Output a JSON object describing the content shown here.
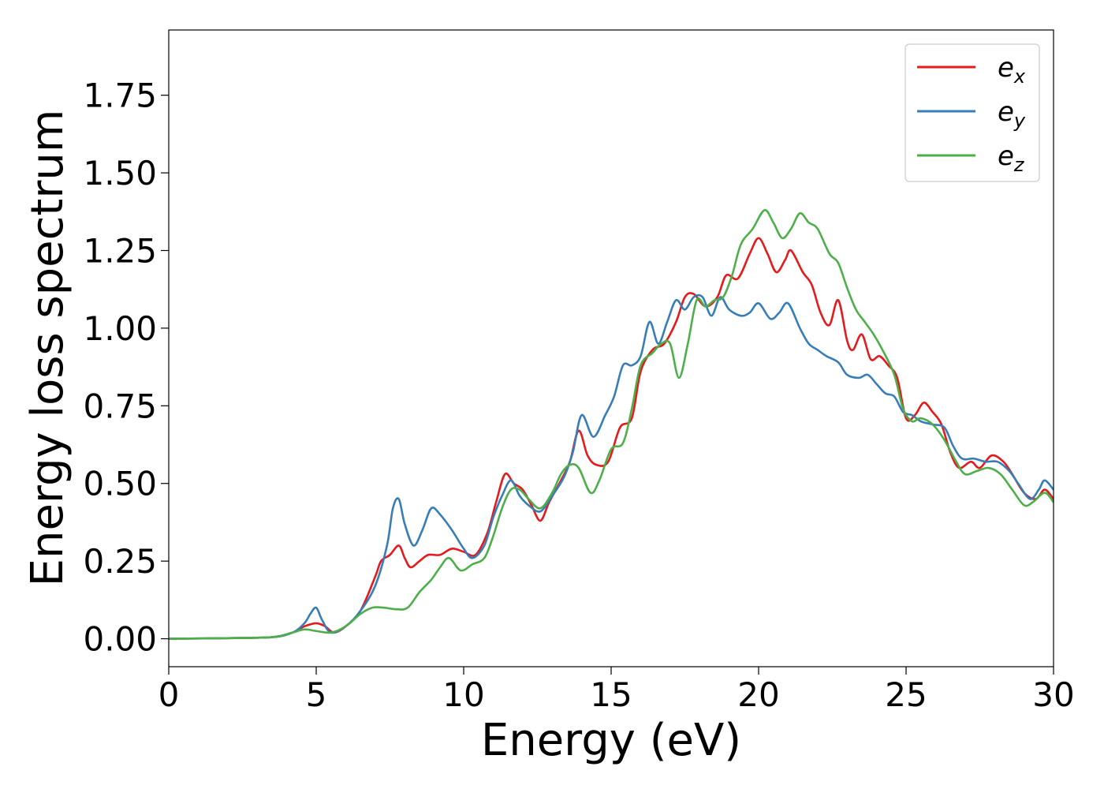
{
  "chart_data": {
    "type": "line",
    "title": "",
    "xlabel": "Energy (eV)",
    "ylabel": "Energy loss spectrum",
    "xlim": [
      0,
      30
    ],
    "ylim": [
      -0.09,
      1.96
    ],
    "xticks": [
      0,
      5,
      10,
      15,
      20,
      25,
      30
    ],
    "xtick_labels": [
      "0",
      "5",
      "10",
      "15",
      "20",
      "25",
      "30"
    ],
    "yticks": [
      0,
      0.25,
      0.5,
      0.75,
      1.0,
      1.25,
      1.5,
      1.75
    ],
    "ytick_labels": [
      "0.00",
      "0.25",
      "0.50",
      "0.75",
      "1.00",
      "1.25",
      "1.50",
      "1.75"
    ],
    "grid": false,
    "legend": {
      "placement": "top-right"
    },
    "series": [
      {
        "name": "e_x",
        "label_main": "e",
        "label_sub": "x",
        "color": "#e41a1c",
        "points": [
          [
            0,
            0
          ],
          [
            2,
            0.002
          ],
          [
            3.5,
            0.005
          ],
          [
            4.2,
            0.02
          ],
          [
            4.6,
            0.04
          ],
          [
            5.0,
            0.05
          ],
          [
            5.3,
            0.04
          ],
          [
            5.6,
            0.02
          ],
          [
            6.0,
            0.04
          ],
          [
            6.5,
            0.09
          ],
          [
            7.0,
            0.2
          ],
          [
            7.2,
            0.25
          ],
          [
            7.5,
            0.27
          ],
          [
            7.8,
            0.3
          ],
          [
            8.0,
            0.26
          ],
          [
            8.2,
            0.23
          ],
          [
            8.5,
            0.25
          ],
          [
            8.8,
            0.27
          ],
          [
            9.2,
            0.27
          ],
          [
            9.6,
            0.29
          ],
          [
            10.0,
            0.28
          ],
          [
            10.4,
            0.27
          ],
          [
            10.8,
            0.34
          ],
          [
            11.1,
            0.44
          ],
          [
            11.4,
            0.53
          ],
          [
            11.7,
            0.5
          ],
          [
            12.0,
            0.48
          ],
          [
            12.3,
            0.43
          ],
          [
            12.6,
            0.38
          ],
          [
            12.9,
            0.44
          ],
          [
            13.3,
            0.51
          ],
          [
            13.6,
            0.57
          ],
          [
            13.9,
            0.67
          ],
          [
            14.2,
            0.59
          ],
          [
            14.5,
            0.56
          ],
          [
            14.9,
            0.57
          ],
          [
            15.3,
            0.68
          ],
          [
            15.7,
            0.71
          ],
          [
            16.0,
            0.86
          ],
          [
            16.4,
            0.93
          ],
          [
            16.8,
            0.95
          ],
          [
            17.2,
            1.02
          ],
          [
            17.5,
            1.1
          ],
          [
            17.8,
            1.11
          ],
          [
            18.2,
            1.07
          ],
          [
            18.6,
            1.1
          ],
          [
            18.9,
            1.17
          ],
          [
            19.3,
            1.16
          ],
          [
            19.7,
            1.24
          ],
          [
            20.0,
            1.29
          ],
          [
            20.3,
            1.24
          ],
          [
            20.6,
            1.18
          ],
          [
            20.9,
            1.22
          ],
          [
            21.1,
            1.25
          ],
          [
            21.5,
            1.18
          ],
          [
            21.8,
            1.14
          ],
          [
            22.1,
            1.05
          ],
          [
            22.4,
            1.01
          ],
          [
            22.7,
            1.09
          ],
          [
            23.0,
            0.96
          ],
          [
            23.2,
            0.93
          ],
          [
            23.5,
            0.98
          ],
          [
            23.8,
            0.9
          ],
          [
            24.1,
            0.91
          ],
          [
            24.4,
            0.88
          ],
          [
            24.7,
            0.84
          ],
          [
            25.0,
            0.71
          ],
          [
            25.3,
            0.72
          ],
          [
            25.6,
            0.76
          ],
          [
            25.9,
            0.73
          ],
          [
            26.2,
            0.69
          ],
          [
            26.5,
            0.6
          ],
          [
            26.8,
            0.55
          ],
          [
            27.2,
            0.57
          ],
          [
            27.5,
            0.55
          ],
          [
            27.9,
            0.59
          ],
          [
            28.3,
            0.57
          ],
          [
            28.6,
            0.53
          ],
          [
            29.0,
            0.47
          ],
          [
            29.4,
            0.45
          ],
          [
            29.7,
            0.48
          ],
          [
            30.0,
            0.45
          ]
        ]
      },
      {
        "name": "e_y",
        "label_main": "e",
        "label_sub": "y",
        "color": "#377eb8",
        "points": [
          [
            0,
            0
          ],
          [
            2,
            0.002
          ],
          [
            3.5,
            0.005
          ],
          [
            4.2,
            0.02
          ],
          [
            4.6,
            0.05
          ],
          [
            4.8,
            0.08
          ],
          [
            5.0,
            0.1
          ],
          [
            5.2,
            0.06
          ],
          [
            5.5,
            0.02
          ],
          [
            6.0,
            0.04
          ],
          [
            6.5,
            0.09
          ],
          [
            7.0,
            0.17
          ],
          [
            7.4,
            0.3
          ],
          [
            7.6,
            0.42
          ],
          [
            7.8,
            0.45
          ],
          [
            8.0,
            0.37
          ],
          [
            8.3,
            0.3
          ],
          [
            8.6,
            0.35
          ],
          [
            8.9,
            0.42
          ],
          [
            9.2,
            0.4
          ],
          [
            9.6,
            0.35
          ],
          [
            10.0,
            0.29
          ],
          [
            10.3,
            0.26
          ],
          [
            10.7,
            0.3
          ],
          [
            11.0,
            0.39
          ],
          [
            11.3,
            0.46
          ],
          [
            11.6,
            0.51
          ],
          [
            11.9,
            0.46
          ],
          [
            12.2,
            0.43
          ],
          [
            12.6,
            0.41
          ],
          [
            13.0,
            0.46
          ],
          [
            13.4,
            0.52
          ],
          [
            13.7,
            0.6
          ],
          [
            14.0,
            0.72
          ],
          [
            14.4,
            0.65
          ],
          [
            14.8,
            0.72
          ],
          [
            15.1,
            0.78
          ],
          [
            15.4,
            0.88
          ],
          [
            15.7,
            0.88
          ],
          [
            16.0,
            0.91
          ],
          [
            16.3,
            1.02
          ],
          [
            16.6,
            0.95
          ],
          [
            16.9,
            1.02
          ],
          [
            17.2,
            1.09
          ],
          [
            17.5,
            1.06
          ],
          [
            17.8,
            1.1
          ],
          [
            18.1,
            1.1
          ],
          [
            18.4,
            1.04
          ],
          [
            18.7,
            1.1
          ],
          [
            19.0,
            1.06
          ],
          [
            19.4,
            1.04
          ],
          [
            19.7,
            1.05
          ],
          [
            20.0,
            1.08
          ],
          [
            20.4,
            1.03
          ],
          [
            20.7,
            1.05
          ],
          [
            21.0,
            1.08
          ],
          [
            21.4,
            1.0
          ],
          [
            21.7,
            0.95
          ],
          [
            22.0,
            0.93
          ],
          [
            22.3,
            0.91
          ],
          [
            22.7,
            0.89
          ],
          [
            23.0,
            0.85
          ],
          [
            23.4,
            0.84
          ],
          [
            23.7,
            0.85
          ],
          [
            24.0,
            0.82
          ],
          [
            24.3,
            0.79
          ],
          [
            24.6,
            0.78
          ],
          [
            24.9,
            0.73
          ],
          [
            25.2,
            0.72
          ],
          [
            25.5,
            0.7
          ],
          [
            25.9,
            0.69
          ],
          [
            26.3,
            0.68
          ],
          [
            26.6,
            0.62
          ],
          [
            26.9,
            0.58
          ],
          [
            27.3,
            0.58
          ],
          [
            27.7,
            0.57
          ],
          [
            28.1,
            0.57
          ],
          [
            28.5,
            0.54
          ],
          [
            28.8,
            0.5
          ],
          [
            29.2,
            0.45
          ],
          [
            29.5,
            0.48
          ],
          [
            29.7,
            0.51
          ],
          [
            30.0,
            0.48
          ]
        ]
      },
      {
        "name": "e_z",
        "label_main": "e",
        "label_sub": "z",
        "color": "#4daf4a",
        "points": [
          [
            0,
            0
          ],
          [
            2,
            0.002
          ],
          [
            3.5,
            0.005
          ],
          [
            4.2,
            0.02
          ],
          [
            4.6,
            0.03
          ],
          [
            5.0,
            0.025
          ],
          [
            5.5,
            0.02
          ],
          [
            6.0,
            0.04
          ],
          [
            6.5,
            0.08
          ],
          [
            6.9,
            0.1
          ],
          [
            7.3,
            0.1
          ],
          [
            7.7,
            0.095
          ],
          [
            8.1,
            0.1
          ],
          [
            8.5,
            0.15
          ],
          [
            8.9,
            0.19
          ],
          [
            9.2,
            0.23
          ],
          [
            9.5,
            0.26
          ],
          [
            9.9,
            0.22
          ],
          [
            10.3,
            0.24
          ],
          [
            10.7,
            0.26
          ],
          [
            11.0,
            0.33
          ],
          [
            11.3,
            0.42
          ],
          [
            11.6,
            0.48
          ],
          [
            11.9,
            0.48
          ],
          [
            12.2,
            0.45
          ],
          [
            12.6,
            0.42
          ],
          [
            13.0,
            0.47
          ],
          [
            13.3,
            0.53
          ],
          [
            13.6,
            0.56
          ],
          [
            13.9,
            0.55
          ],
          [
            14.3,
            0.47
          ],
          [
            14.6,
            0.51
          ],
          [
            15.0,
            0.61
          ],
          [
            15.4,
            0.63
          ],
          [
            15.7,
            0.74
          ],
          [
            16.0,
            0.88
          ],
          [
            16.4,
            0.92
          ],
          [
            16.7,
            0.95
          ],
          [
            17.0,
            0.95
          ],
          [
            17.3,
            0.84
          ],
          [
            17.6,
            0.95
          ],
          [
            17.9,
            1.09
          ],
          [
            18.2,
            1.07
          ],
          [
            18.5,
            1.09
          ],
          [
            18.8,
            1.1
          ],
          [
            19.1,
            1.17
          ],
          [
            19.4,
            1.27
          ],
          [
            19.8,
            1.32
          ],
          [
            20.2,
            1.38
          ],
          [
            20.5,
            1.34
          ],
          [
            20.8,
            1.29
          ],
          [
            21.1,
            1.32
          ],
          [
            21.4,
            1.37
          ],
          [
            21.7,
            1.34
          ],
          [
            22.0,
            1.32
          ],
          [
            22.4,
            1.24
          ],
          [
            22.7,
            1.21
          ],
          [
            23.0,
            1.13
          ],
          [
            23.3,
            1.06
          ],
          [
            23.6,
            1.02
          ],
          [
            23.9,
            0.98
          ],
          [
            24.2,
            0.93
          ],
          [
            24.6,
            0.85
          ],
          [
            24.9,
            0.74
          ],
          [
            25.2,
            0.7
          ],
          [
            25.5,
            0.71
          ],
          [
            25.9,
            0.69
          ],
          [
            26.3,
            0.64
          ],
          [
            26.7,
            0.57
          ],
          [
            27.0,
            0.53
          ],
          [
            27.4,
            0.54
          ],
          [
            27.8,
            0.55
          ],
          [
            28.2,
            0.53
          ],
          [
            28.6,
            0.48
          ],
          [
            29.0,
            0.43
          ],
          [
            29.3,
            0.44
          ],
          [
            29.7,
            0.47
          ],
          [
            30.0,
            0.44
          ]
        ]
      }
    ]
  }
}
